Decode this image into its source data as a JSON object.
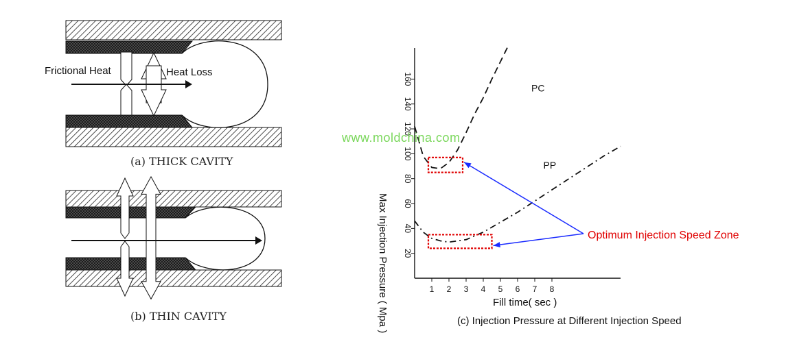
{
  "thick_cavity": {
    "caption": "(a) THICK CAVITY",
    "left_label": "Frictional Heat",
    "right_label": "Heat Loss"
  },
  "thin_cavity": {
    "caption": "(b) THIN CAVITY"
  },
  "watermark": "www.moldchina.com",
  "chart_data": {
    "type": "line",
    "title": "(c) Injection Pressure at Different Injection Speed",
    "xlabel": "Fill time( sec )",
    "ylabel": "Max Injection Pressure ( Mpa )",
    "x_ticks": [
      "1",
      "2",
      "3",
      "4",
      "5",
      "6",
      "7",
      "8"
    ],
    "y_ticks": [
      "20",
      "40",
      "60",
      "80",
      "100",
      "120",
      "140",
      "160"
    ],
    "xlim": [
      0,
      12
    ],
    "ylim": [
      0,
      185
    ],
    "series": [
      {
        "name": "PC",
        "style": "dashed",
        "points": [
          [
            0,
            122
          ],
          [
            0.5,
            98
          ],
          [
            1,
            89
          ],
          [
            1.5,
            88
          ],
          [
            2,
            93
          ],
          [
            2.5,
            103
          ],
          [
            3,
            117
          ],
          [
            3.5,
            132
          ],
          [
            4,
            145
          ],
          [
            4.5,
            160
          ],
          [
            5,
            174
          ],
          [
            5.5,
            188
          ]
        ]
      },
      {
        "name": "PP",
        "style": "dash-dot",
        "points": [
          [
            0,
            46
          ],
          [
            0.5,
            37
          ],
          [
            1,
            32
          ],
          [
            1.5,
            30
          ],
          [
            2,
            29
          ],
          [
            3,
            31
          ],
          [
            4,
            37
          ],
          [
            5,
            45
          ],
          [
            6,
            53
          ],
          [
            7,
            62
          ],
          [
            8,
            71
          ],
          [
            9,
            80
          ],
          [
            10,
            89
          ],
          [
            11,
            98
          ],
          [
            12,
            106
          ]
        ]
      }
    ],
    "annotation": {
      "text": "Optimum Injection Speed Zone",
      "color": "#e00000",
      "arrow_color": "#1a2bff",
      "zones": [
        {
          "series": "PC",
          "x": [
            0.8,
            2.8
          ],
          "y": [
            85,
            97
          ]
        },
        {
          "series": "PP",
          "x": [
            0.8,
            4.5
          ],
          "y": [
            24,
            35
          ]
        }
      ]
    }
  }
}
